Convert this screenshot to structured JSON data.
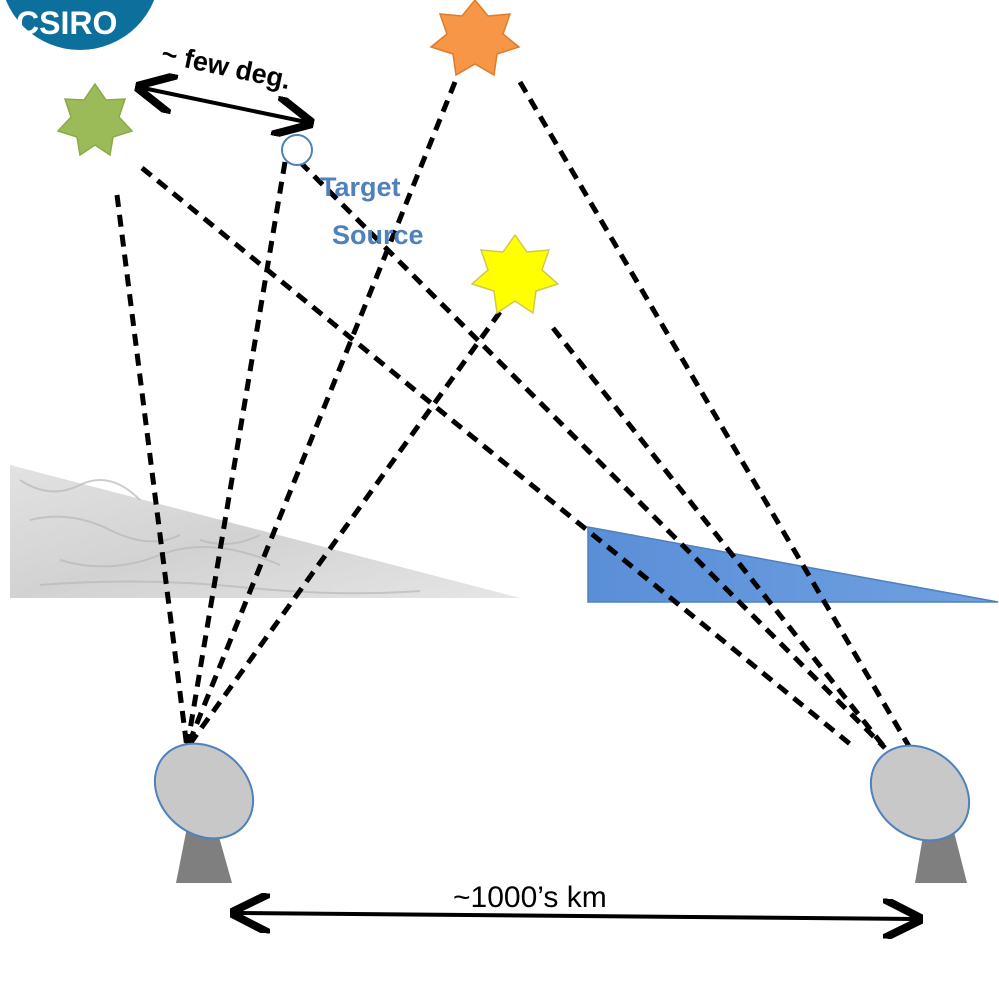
{
  "logo": {
    "text": "CSIRO",
    "color": "#0d6f9c",
    "text_color": "#ffffff"
  },
  "separation_label": "~ few deg.",
  "target_label_line1": "Target",
  "target_label_line2": "Source",
  "baseline_label": "~1000’s km",
  "colors": {
    "green_star": "#9bbb59",
    "orange_star": "#f79646",
    "yellow_star": "#ffff00",
    "target": "#4f81bd",
    "label_blue": "#4f81bd",
    "ionosphere": "#5b8fd6",
    "dish": "#c8c8c8",
    "pedestal": "#7f7f7f"
  },
  "icons": [
    "green-star-icon",
    "orange-star-icon",
    "yellow-star-icon",
    "target-source-icon",
    "antenna-dish-icon"
  ]
}
